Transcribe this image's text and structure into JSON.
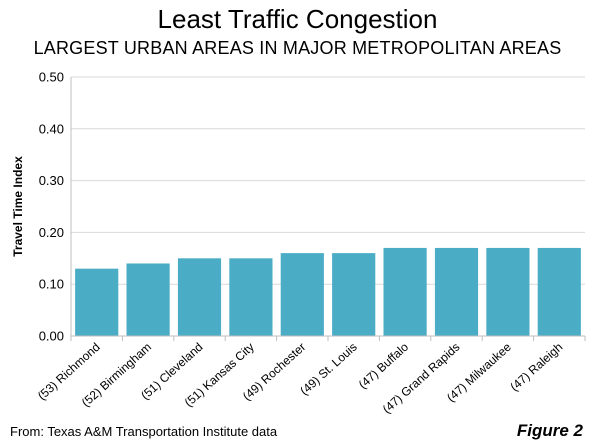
{
  "title": "Least Traffic Congestion",
  "subtitle": "LARGEST URBAN AREAS IN MAJOR METROPOLITAN AREAS",
  "source": "From: Texas A&M Transportation Institute data",
  "figure_label": "Figure 2",
  "colors": {
    "bar": "#4bacc6",
    "grid": "#d9d9d9",
    "axis": "#bfbfbf"
  },
  "chart_data": {
    "type": "bar",
    "categories": [
      "(53) Richmond",
      "(52) Birmingham",
      "(51) Cleveland",
      "(51) Kansas City",
      "(49) Rochester",
      "(49) St. Louis",
      "(47) Buffalo",
      "(47) Grand Rapids",
      "(47) Milwaukee",
      "(47) Raleigh"
    ],
    "values": [
      0.13,
      0.14,
      0.15,
      0.15,
      0.16,
      0.16,
      0.17,
      0.17,
      0.17,
      0.17
    ],
    "ylabel": "Travel Time Index",
    "ylim": [
      0,
      0.5
    ],
    "yticks": [
      "0.00",
      "0.10",
      "0.20",
      "0.30",
      "0.40",
      "0.50"
    ],
    "grid": true,
    "legend": "none"
  }
}
